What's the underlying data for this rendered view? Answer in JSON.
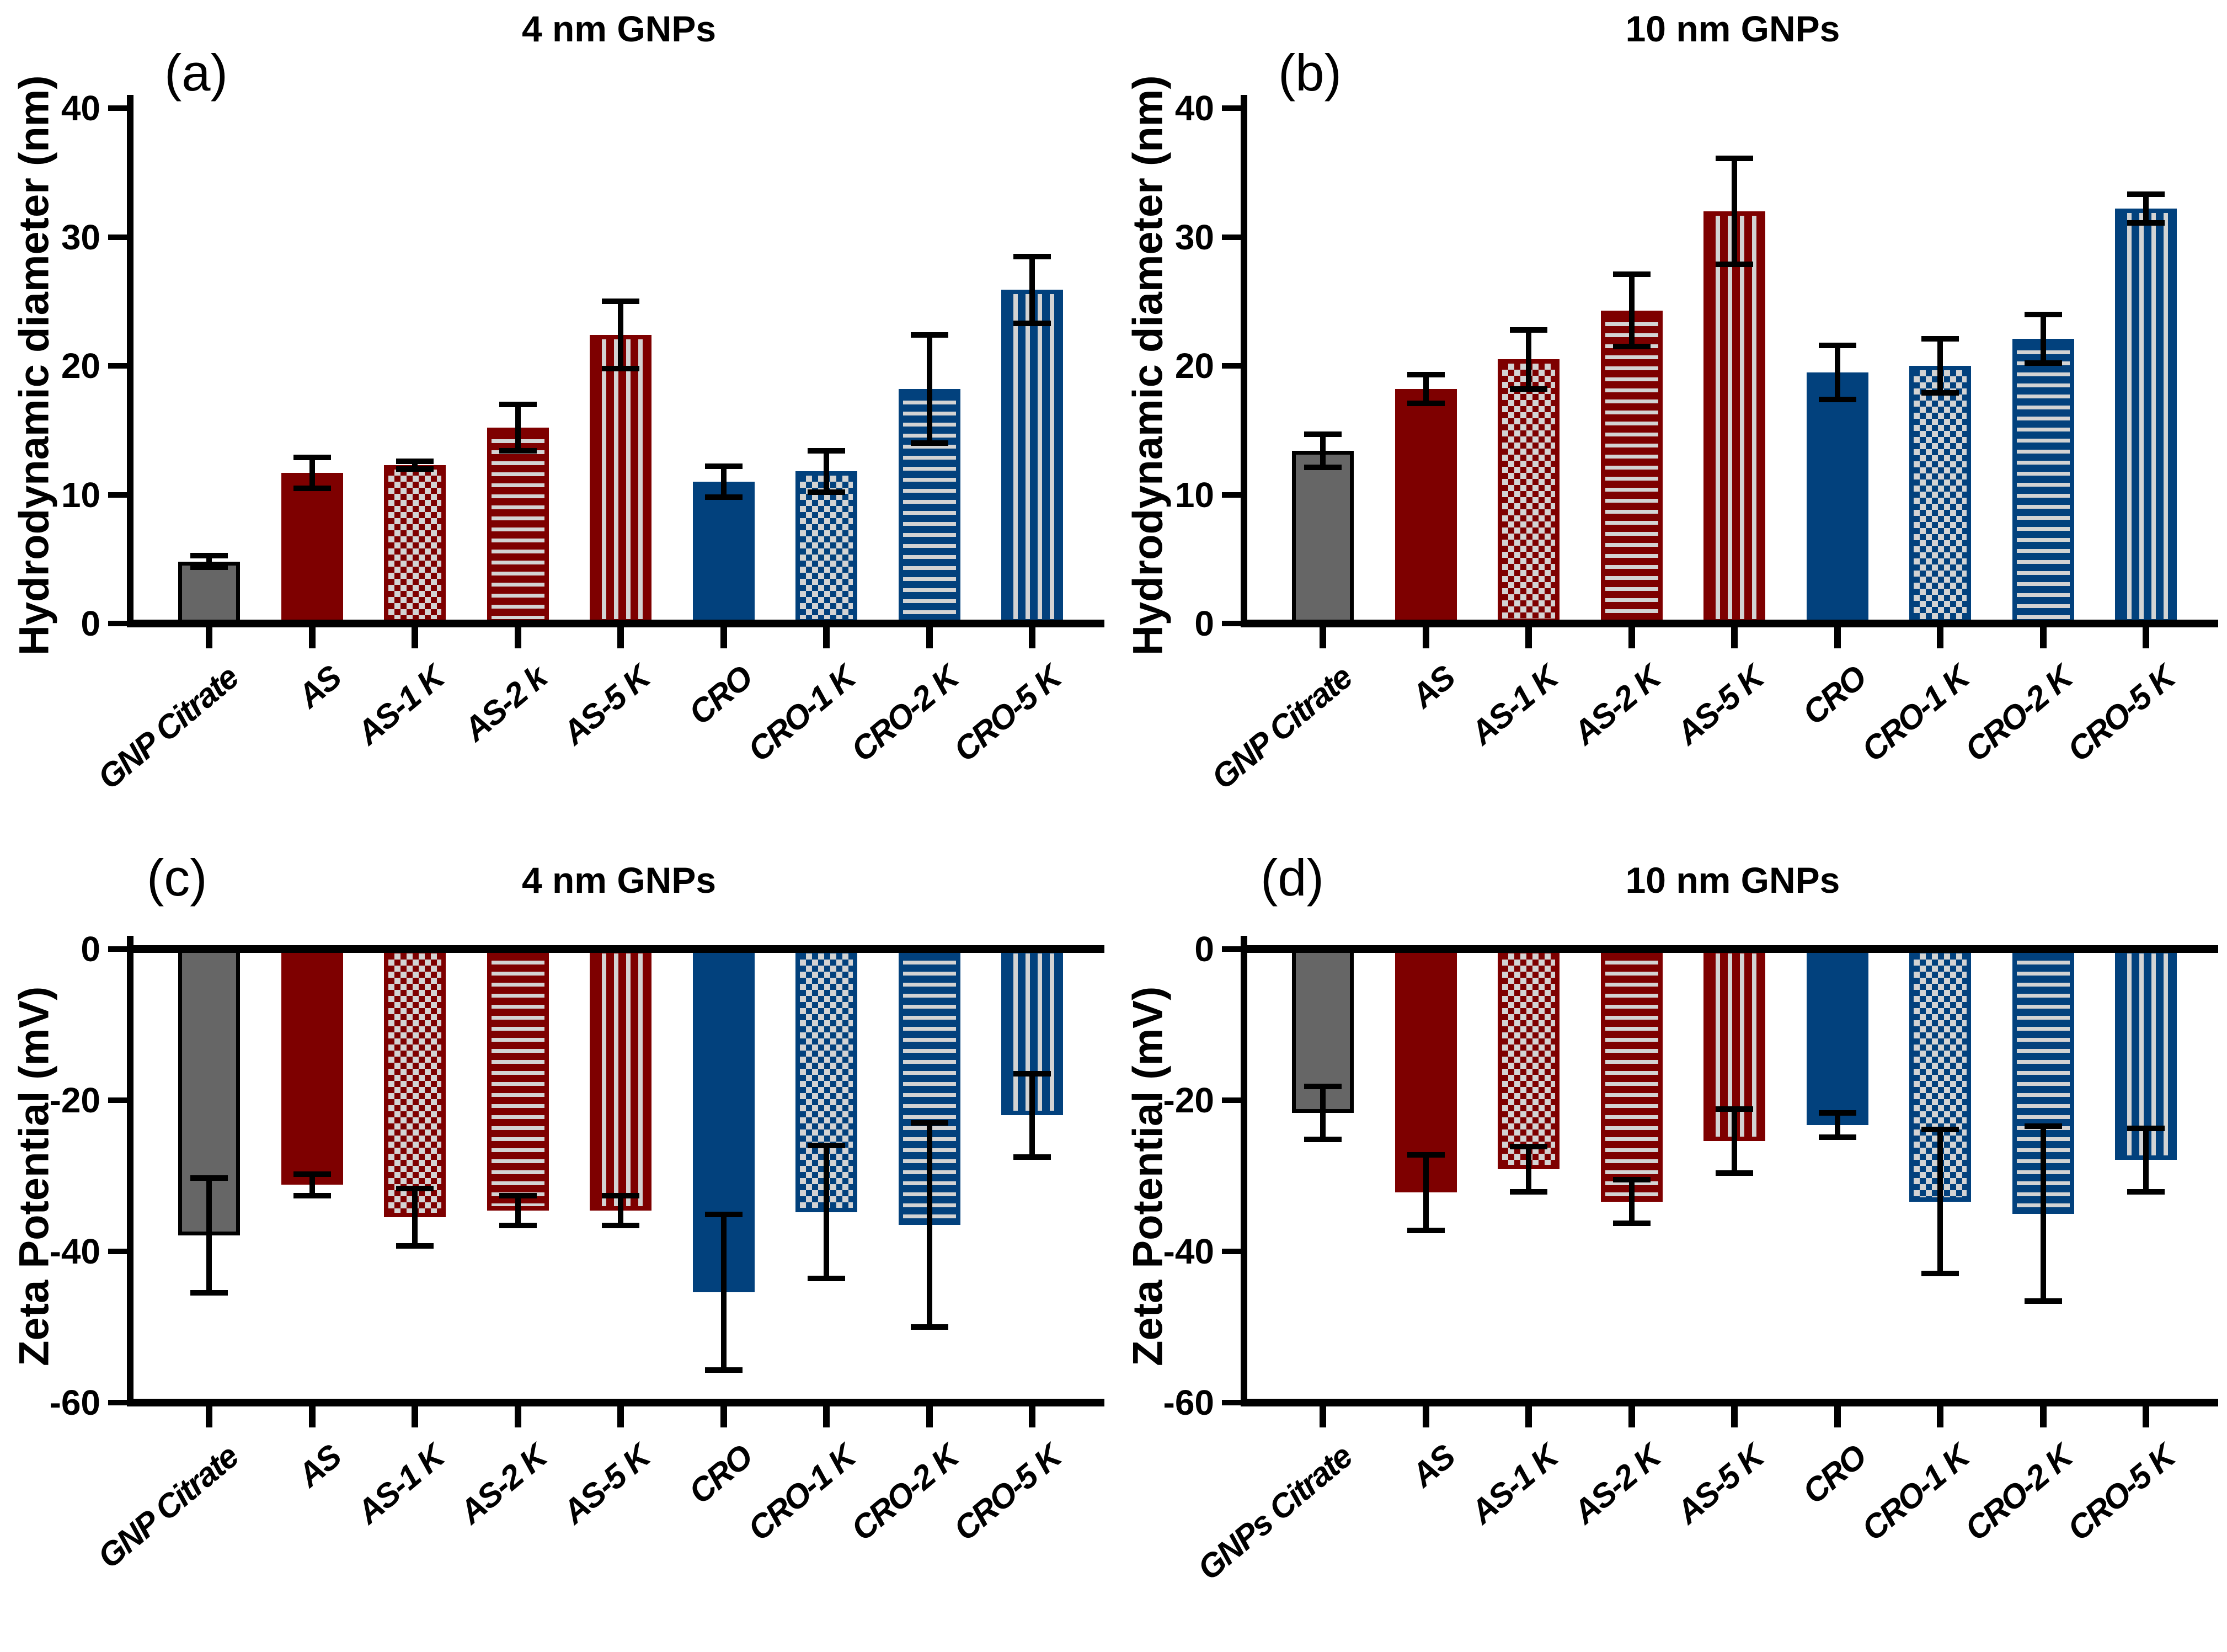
{
  "styles": {
    "background": "#FFFFFF",
    "axis_color": "#000000",
    "bar_red": "#7E0000",
    "bar_blue": "#02417D",
    "bar_gray": "#666666",
    "pattern_light": "#D3D3D3",
    "bar_styles": [
      "gray-solid",
      "red-solid",
      "red-checker",
      "red-hstripe",
      "red-vstripe",
      "blue-solid",
      "blue-checker",
      "blue-hstripe",
      "blue-vstripe"
    ]
  },
  "chart_data": [
    {
      "type": "bar",
      "panel_label": "(a)",
      "title": "4 nm GNPs",
      "ylabel": "Hydrodynamic diameter (nm)",
      "ylim": [
        0,
        40
      ],
      "yticks": [
        0,
        10,
        20,
        30,
        40
      ],
      "grid": false,
      "legend": null,
      "categories": [
        "GNP Citrate",
        "AS",
        "AS-1 K",
        "AS-2 k",
        "AS-5 K",
        "CRO",
        "CRO-1 K",
        "CRO-2 K",
        "CRO-5 K"
      ],
      "values": [
        4.8,
        11.7,
        12.3,
        15.2,
        22.4,
        11.0,
        11.8,
        18.2,
        25.9
      ],
      "errors": [
        0.45,
        1.2,
        0.3,
        1.8,
        2.6,
        1.2,
        1.6,
        4.2,
        2.6
      ]
    },
    {
      "type": "bar",
      "panel_label": "(b)",
      "title": "10 nm GNPs",
      "ylabel": "Hydrodynamic diameter (nm)",
      "ylim": [
        0,
        40
      ],
      "yticks": [
        0,
        10,
        20,
        30,
        40
      ],
      "grid": false,
      "legend": null,
      "categories": [
        "GNP Citrate",
        "AS",
        "AS-1 K",
        "AS-2 K",
        "AS-5 K",
        "CRO",
        "CRO-1 K",
        "CRO-2 K",
        "CRO-5 K"
      ],
      "values": [
        13.4,
        18.2,
        20.5,
        24.3,
        32.0,
        19.5,
        20.0,
        22.1,
        32.2
      ],
      "errors": [
        1.3,
        1.1,
        2.3,
        2.8,
        4.1,
        2.1,
        2.1,
        1.9,
        1.1
      ]
    },
    {
      "type": "bar",
      "panel_label": "(c)",
      "title": "4 nm GNPs",
      "ylabel": "Zeta Potential (mV)",
      "ylim": [
        -60,
        0
      ],
      "yticks": [
        0,
        -20,
        -40,
        -60
      ],
      "grid": false,
      "legend": null,
      "categories": [
        "GNP Citrate",
        "AS",
        "AS-1 K",
        "AS-2 K",
        "AS-5 K",
        "CRO",
        "CRO-1 K",
        "CRO-2 K",
        "CRO-5 K"
      ],
      "values": [
        -37.9,
        -31.2,
        -35.5,
        -34.6,
        -34.6,
        -45.4,
        -34.8,
        -36.5,
        -22.0
      ],
      "errors": [
        7.6,
        1.4,
        3.8,
        2.0,
        2.0,
        10.3,
        8.8,
        13.5,
        5.5
      ]
    },
    {
      "type": "bar",
      "panel_label": "(d)",
      "title": "10 nm GNPs",
      "ylabel": "Zeta Potential (mV)",
      "ylim": [
        -60,
        0
      ],
      "yticks": [
        0,
        -20,
        -40,
        -60
      ],
      "grid": false,
      "legend": null,
      "categories": [
        "GNPs Citrate",
        "AS",
        "AS-1 K",
        "AS-2 K",
        "AS-5 K",
        "CRO",
        "CRO-1 K",
        "CRO-2 K",
        "CRO-5 K"
      ],
      "values": [
        -21.7,
        -32.2,
        -29.1,
        -33.4,
        -25.4,
        -23.3,
        -33.4,
        -35.0,
        -27.9
      ],
      "errors": [
        3.5,
        5.0,
        3.0,
        2.9,
        4.2,
        1.6,
        9.5,
        11.6,
        4.2
      ]
    }
  ]
}
